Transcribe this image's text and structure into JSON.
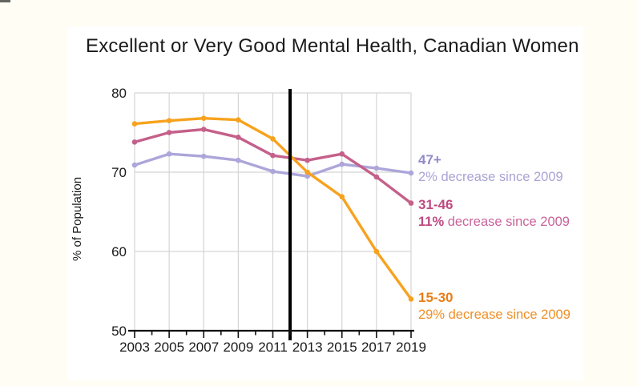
{
  "page": {
    "background_color": "#FFFDF4",
    "slide_background_color": "#FFFFFF"
  },
  "title": "Excellent or Very Good Mental Health, Canadian Women",
  "chart_data": {
    "type": "line",
    "title": "Excellent or Very Good Mental Health, Canadian Women",
    "xlabel": "",
    "ylabel": "% of Population",
    "x": [
      2003,
      2005,
      2007,
      2009,
      2011,
      2013,
      2015,
      2017,
      2019
    ],
    "x_tick_labels": [
      "2003",
      "2005",
      "2007",
      "2009",
      "2011",
      "2013",
      "2015",
      "2017",
      "2019"
    ],
    "y_ticks": [
      80,
      70,
      60,
      50
    ],
    "xlim": [
      2003,
      2019
    ],
    "ylim": [
      50,
      80
    ],
    "grid": true,
    "gridline_color": "#D5D5D5",
    "axis_color": "#111111",
    "reference_line": {
      "x": 2012,
      "color": "#000000"
    },
    "legend_position": "right",
    "series": [
      {
        "name": "47+",
        "color": "#ACA6DA",
        "values": [
          70.9,
          72.3,
          72.0,
          71.5,
          70.1,
          69.5,
          71.0,
          70.5,
          69.9
        ]
      },
      {
        "name": "31-46",
        "color": "#C4608A",
        "values": [
          73.8,
          75.0,
          75.4,
          74.4,
          72.1,
          71.5,
          72.3,
          69.4,
          66.1
        ]
      },
      {
        "name": "15-30",
        "color": "#F7A21E",
        "values": [
          76.1,
          76.5,
          76.8,
          76.6,
          74.2,
          70.0,
          66.9,
          60.0,
          54.0
        ]
      }
    ]
  },
  "axes": {
    "ylabel": "% of Population"
  },
  "legend": [
    {
      "label": "47+",
      "pct": "2%",
      "rest": " decrease since 2009",
      "pct_bold": false,
      "label_color": "#928BC8",
      "body_color": "#A9A3D6"
    },
    {
      "label": "31-46",
      "pct": "11%",
      "rest": " decrease since 2009",
      "pct_bold": true,
      "label_color": "#BE4A80",
      "body_color": "#C9649A"
    },
    {
      "label": "15-30",
      "pct": "29%",
      "rest": " decrease since 2009",
      "pct_bold": false,
      "label_color": "#E87D19",
      "body_color": "#EE9027"
    }
  ]
}
